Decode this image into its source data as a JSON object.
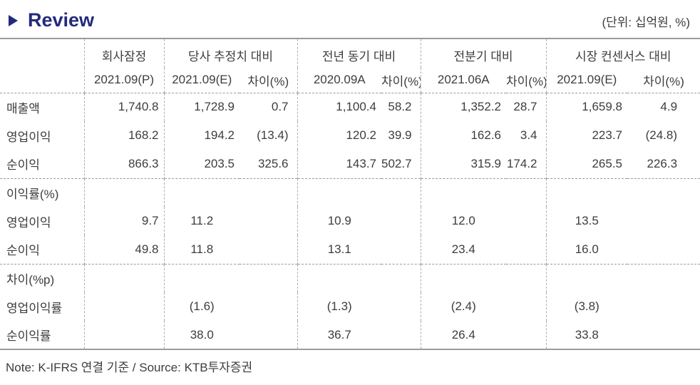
{
  "title": {
    "marker_icon": "triangle-right",
    "text": "Review"
  },
  "units_label": "(단위: 십억원, %)",
  "footnote": "Note: K-IFRS 연결 기준 / Source: KTB투자증권",
  "colors": {
    "accent_navy": "#232a7d",
    "text": "#3d3d3d",
    "rule_solid": "#9b9b9b",
    "rule_dashed": "#adadad"
  },
  "table": {
    "column_groups": [
      {
        "label": "회사잠정",
        "sub": [
          "2021.09(P)"
        ]
      },
      {
        "label": "당사 추정치 대비",
        "sub": [
          "2021.09(E)",
          "차이(%)"
        ]
      },
      {
        "label": "전년 동기 대비",
        "sub": [
          "2020.09A",
          "차이(%)"
        ]
      },
      {
        "label": "전분기 대비",
        "sub": [
          "2021.06A",
          "차이(%)"
        ]
      },
      {
        "label": "시장 컨센서스 대비",
        "sub": [
          "2021.09(E)",
          "차이(%)"
        ]
      }
    ],
    "sections": [
      {
        "header": null,
        "value_align": "right",
        "rows": [
          {
            "label": "매출액",
            "cells": [
              "1,740.8",
              "1,728.9",
              "0.7",
              "1,100.4",
              "58.2",
              "1,352.2",
              "28.7",
              "1,659.8",
              "4.9"
            ]
          },
          {
            "label": "영업이익",
            "cells": [
              "168.2",
              "194.2",
              "(13.4)",
              "120.2",
              "39.9",
              "162.6",
              "3.4",
              "223.7",
              "(24.8)"
            ]
          },
          {
            "label": "순이익",
            "cells": [
              "866.3",
              "203.5",
              "325.6",
              "143.7",
              "502.7",
              "315.9",
              "174.2",
              "265.5",
              "226.3"
            ]
          }
        ]
      },
      {
        "header": "이익률(%)",
        "value_align": "center",
        "rows": [
          {
            "label": "영업이익",
            "cells": [
              "9.7",
              "11.2",
              "",
              "10.9",
              "",
              "12.0",
              "",
              "13.5",
              ""
            ]
          },
          {
            "label": "순이익",
            "cells": [
              "49.8",
              "11.8",
              "",
              "13.1",
              "",
              "23.4",
              "",
              "16.0",
              ""
            ]
          }
        ]
      },
      {
        "header": "차이(%p)",
        "value_align": "center",
        "rows": [
          {
            "label": "영업이익률",
            "cells": [
              "",
              "(1.6)",
              "",
              "(1.3)",
              "",
              "(2.4)",
              "",
              "(3.8)",
              ""
            ]
          },
          {
            "label": "순이익률",
            "cells": [
              "",
              "38.0",
              "",
              "36.7",
              "",
              "26.4",
              "",
              "33.8",
              ""
            ]
          }
        ]
      }
    ]
  }
}
